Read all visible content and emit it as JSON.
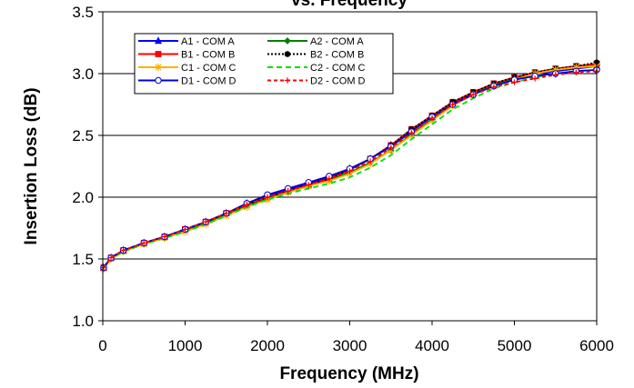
{
  "chart_data": {
    "type": "line",
    "title": "vs. Frequency",
    "xlabel": "Frequency (MHz)",
    "ylabel": "Insertion Loss (dB)",
    "xlim": [
      0,
      6000
    ],
    "ylim": [
      1.0,
      3.5
    ],
    "xticks": [
      0,
      1000,
      2000,
      3000,
      4000,
      5000,
      6000
    ],
    "yticks": [
      1.0,
      1.5,
      2.0,
      2.5,
      3.0,
      3.5
    ],
    "xtick_labels": [
      "0",
      "1000",
      "2000",
      "3000",
      "4000",
      "5000",
      "6000"
    ],
    "ytick_labels": [
      "1.0",
      "1.5",
      "2.0",
      "2.5",
      "3.0",
      "3.5"
    ],
    "grid": "horizontal",
    "legend_position": "top-left",
    "x": [
      10,
      100,
      250,
      500,
      750,
      1000,
      1250,
      1500,
      1750,
      2000,
      2250,
      2500,
      2750,
      3000,
      3250,
      3500,
      3750,
      4000,
      4250,
      4500,
      4750,
      5000,
      5250,
      5500,
      5750,
      6000
    ],
    "series": [
      {
        "name": "A1 - COM A",
        "color": "#0000ff",
        "dash": "",
        "marker": "triangle",
        "values": [
          1.43,
          1.51,
          1.57,
          1.63,
          1.68,
          1.74,
          1.8,
          1.87,
          1.95,
          2.01,
          2.06,
          2.11,
          2.16,
          2.23,
          2.31,
          2.42,
          2.54,
          2.65,
          2.76,
          2.84,
          2.91,
          2.96,
          3.0,
          3.02,
          3.04,
          3.06
        ]
      },
      {
        "name": "A2 - COM A",
        "color": "#008000",
        "dash": "",
        "marker": "diamond",
        "values": [
          1.42,
          1.5,
          1.56,
          1.62,
          1.67,
          1.73,
          1.79,
          1.86,
          1.93,
          1.99,
          2.04,
          2.09,
          2.14,
          2.2,
          2.28,
          2.38,
          2.51,
          2.63,
          2.75,
          2.83,
          2.91,
          2.96,
          3.01,
          3.04,
          3.06,
          3.07
        ]
      },
      {
        "name": "B1 - COM B",
        "color": "#ff0000",
        "dash": "",
        "marker": "square",
        "values": [
          1.43,
          1.51,
          1.57,
          1.63,
          1.68,
          1.74,
          1.8,
          1.87,
          1.94,
          2.0,
          2.05,
          2.1,
          2.15,
          2.22,
          2.31,
          2.42,
          2.55,
          2.66,
          2.77,
          2.85,
          2.92,
          2.97,
          3.01,
          3.04,
          3.06,
          3.08
        ]
      },
      {
        "name": "B2 - COM B",
        "color": "#000000",
        "dash": "2,2",
        "marker": "circle-filled",
        "values": [
          1.43,
          1.51,
          1.57,
          1.63,
          1.68,
          1.74,
          1.8,
          1.87,
          1.94,
          2.0,
          2.05,
          2.1,
          2.15,
          2.22,
          2.31,
          2.42,
          2.55,
          2.66,
          2.77,
          2.85,
          2.92,
          2.97,
          3.01,
          3.04,
          3.06,
          3.09
        ]
      },
      {
        "name": "C1 - COM C",
        "color": "#ffb000",
        "dash": "",
        "marker": "star",
        "values": [
          1.42,
          1.5,
          1.56,
          1.62,
          1.67,
          1.72,
          1.78,
          1.85,
          1.92,
          1.98,
          2.04,
          2.09,
          2.13,
          2.19,
          2.27,
          2.38,
          2.5,
          2.62,
          2.74,
          2.83,
          2.9,
          2.95,
          3.0,
          3.03,
          3.05,
          3.06
        ]
      },
      {
        "name": "C2 - COM C",
        "color": "#00dd00",
        "dash": "6,4",
        "marker": "none",
        "values": [
          1.42,
          1.5,
          1.56,
          1.62,
          1.67,
          1.72,
          1.78,
          1.85,
          1.92,
          1.98,
          2.03,
          2.07,
          2.11,
          2.16,
          2.24,
          2.34,
          2.47,
          2.59,
          2.71,
          2.8,
          2.88,
          2.93,
          2.97,
          3.0,
          3.02,
          3.03
        ]
      },
      {
        "name": "D1 - COM D",
        "color": "#0000cc",
        "dash": "",
        "marker": "circle-open",
        "values": [
          1.43,
          1.51,
          1.57,
          1.63,
          1.68,
          1.74,
          1.8,
          1.87,
          1.95,
          2.02,
          2.07,
          2.12,
          2.17,
          2.23,
          2.31,
          2.41,
          2.53,
          2.65,
          2.75,
          2.83,
          2.9,
          2.95,
          2.98,
          3.0,
          3.02,
          3.03
        ]
      },
      {
        "name": "D2 - COM D",
        "color": "#ff0000",
        "dash": "4,3",
        "marker": "plus",
        "values": [
          1.43,
          1.51,
          1.57,
          1.63,
          1.68,
          1.74,
          1.8,
          1.87,
          1.94,
          2.0,
          2.05,
          2.1,
          2.15,
          2.21,
          2.29,
          2.4,
          2.52,
          2.64,
          2.75,
          2.83,
          2.89,
          2.93,
          2.96,
          2.99,
          3.01,
          3.02
        ]
      }
    ]
  }
}
